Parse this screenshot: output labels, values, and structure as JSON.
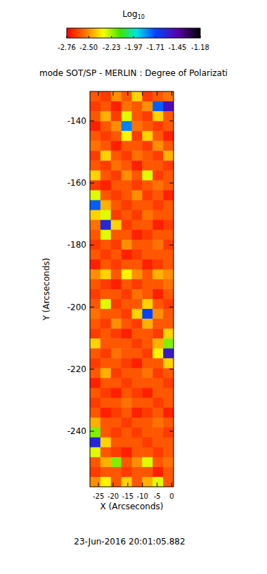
{
  "chart_data": {
    "type": "heatmap",
    "title": "mode SOT/SP - MERLIN : Degree of Polarizati",
    "subtitle": "23-Jun-2016 20:01:05.882",
    "x_label": "X (Arcseconds)",
    "y_label": "Y (Arcseconds)",
    "xlim": [
      -27.9,
      0.6
    ],
    "ylim": [
      -257.9,
      -130.5
    ],
    "xticks": [
      -25,
      -20,
      -15,
      -10,
      -5,
      0
    ],
    "yticks": [
      -240,
      -220,
      -200,
      -180,
      -160,
      -140
    ],
    "colorbar_label": "Log10",
    "colorbar_range": [
      -2.76,
      -1.18
    ],
    "colorbar_ticks": [
      -2.76,
      -2.5,
      -2.23,
      -1.97,
      -1.71,
      -1.45,
      -1.18
    ],
    "cells": [
      [
        -2.6,
        -2.65,
        -2.5,
        -2.6,
        -2.4,
        -2.65,
        -2.6,
        -2.55
      ],
      [
        -2.65,
        -2.6,
        -2.7,
        -2.55,
        -2.6,
        -2.5,
        -1.75,
        -1.5
      ],
      [
        -2.6,
        -2.45,
        -2.65,
        -2.3,
        -2.6,
        -2.65,
        -2.4,
        -2.6
      ],
      [
        -2.7,
        -2.6,
        -2.5,
        -1.8,
        -2.55,
        -2.6,
        -2.65,
        -2.6
      ],
      [
        -2.6,
        -2.65,
        -2.6,
        -2.35,
        -2.65,
        -2.4,
        -2.6,
        -2.7
      ],
      [
        -2.55,
        -2.6,
        -2.7,
        -2.6,
        -2.6,
        -2.65,
        -2.5,
        -2.6
      ],
      [
        -2.65,
        -2.4,
        -2.6,
        -2.65,
        -2.55,
        -2.6,
        -2.65,
        -2.45
      ],
      [
        -2.6,
        -2.65,
        -2.55,
        -2.6,
        -2.7,
        -2.6,
        -2.6,
        -2.65
      ],
      [
        -2.4,
        -2.6,
        -2.65,
        -2.5,
        -2.6,
        -2.3,
        -2.65,
        -2.6
      ],
      [
        -2.65,
        -2.7,
        -2.6,
        -2.6,
        -2.65,
        -2.6,
        -2.55,
        -2.6
      ],
      [
        -2.3,
        -2.6,
        -2.65,
        -2.6,
        -2.5,
        -2.65,
        -2.6,
        -2.7
      ],
      [
        -1.75,
        -2.45,
        -2.6,
        -2.65,
        -2.6,
        -2.6,
        -2.65,
        -2.6
      ],
      [
        -2.4,
        -2.3,
        -2.65,
        -2.6,
        -2.65,
        -2.55,
        -2.6,
        -2.6
      ],
      [
        -2.55,
        -1.6,
        -2.4,
        -2.65,
        -2.6,
        -2.6,
        -2.7,
        -2.65
      ],
      [
        -2.6,
        -2.3,
        -2.6,
        -2.6,
        -2.7,
        -2.65,
        -2.6,
        -2.6
      ],
      [
        -2.65,
        -2.6,
        -2.65,
        -2.5,
        -2.6,
        -2.6,
        -2.55,
        -2.65
      ],
      [
        -2.6,
        -2.65,
        -2.6,
        -2.7,
        -2.65,
        -2.6,
        -2.6,
        -2.6
      ],
      [
        -2.7,
        -2.6,
        -2.65,
        -2.6,
        -2.6,
        -2.7,
        -2.65,
        -2.6
      ],
      [
        -2.5,
        -2.4,
        -2.6,
        -2.35,
        -2.5,
        -2.6,
        -2.45,
        -2.5
      ],
      [
        -2.6,
        -2.65,
        -2.7,
        -2.6,
        -2.65,
        -2.6,
        -2.6,
        -2.55
      ],
      [
        -2.65,
        -2.6,
        -2.6,
        -2.65,
        -2.55,
        -2.6,
        -2.7,
        -2.6
      ],
      [
        -2.6,
        -2.3,
        -2.65,
        -2.6,
        -2.6,
        -2.4,
        -2.6,
        -2.65
      ],
      [
        -2.55,
        -2.6,
        -2.6,
        -2.65,
        -2.4,
        -1.7,
        -2.5,
        -2.6
      ],
      [
        -2.6,
        -2.65,
        -2.5,
        -2.6,
        -2.65,
        -2.45,
        -2.6,
        -2.6
      ],
      [
        -2.65,
        -2.6,
        -2.65,
        -2.7,
        -2.6,
        -2.6,
        -2.65,
        -2.4
      ],
      [
        -2.4,
        -2.6,
        -2.6,
        -2.6,
        -2.65,
        -2.6,
        -2.45,
        -2.2
      ],
      [
        -2.6,
        -2.65,
        -2.55,
        -2.6,
        -2.6,
        -2.65,
        -2.35,
        -1.55
      ],
      [
        -2.65,
        -2.6,
        -2.6,
        -2.65,
        -2.7,
        -2.6,
        -2.6,
        -2.4
      ],
      [
        -2.6,
        -2.45,
        -2.65,
        -2.6,
        -2.6,
        -2.55,
        -2.65,
        -2.6
      ],
      [
        -2.7,
        -2.6,
        -2.6,
        -2.65,
        -2.6,
        -2.6,
        -2.6,
        -2.65
      ],
      [
        -2.6,
        -2.65,
        -2.7,
        -2.6,
        -2.65,
        -2.7,
        -2.6,
        -2.6
      ],
      [
        -2.65,
        -2.6,
        -2.6,
        -2.55,
        -2.6,
        -2.6,
        -2.65,
        -2.6
      ],
      [
        -2.6,
        -2.7,
        -2.65,
        -2.6,
        -2.7,
        -2.65,
        -2.6,
        -2.7
      ],
      [
        -2.45,
        -2.6,
        -2.6,
        -2.65,
        -2.6,
        -2.6,
        -2.55,
        -2.6
      ],
      [
        -2.2,
        -2.6,
        -2.65,
        -2.6,
        -2.65,
        -2.6,
        -2.6,
        -2.65
      ],
      [
        -1.6,
        -2.4,
        -2.6,
        -2.6,
        -2.6,
        -2.65,
        -2.6,
        -2.6
      ],
      [
        -2.3,
        -2.6,
        -2.65,
        -2.7,
        -2.6,
        -2.6,
        -2.65,
        -2.6
      ],
      [
        -2.6,
        -2.45,
        -2.2,
        -2.6,
        -2.5,
        -2.3,
        -2.6,
        -2.55
      ],
      [
        -2.65,
        -2.6,
        -2.6,
        -2.65,
        -2.6,
        -2.6,
        -2.7,
        -2.6
      ],
      [
        -2.5,
        -2.35,
        -2.6,
        -2.4,
        -2.6,
        -2.45,
        -2.3,
        -2.6
      ]
    ]
  }
}
